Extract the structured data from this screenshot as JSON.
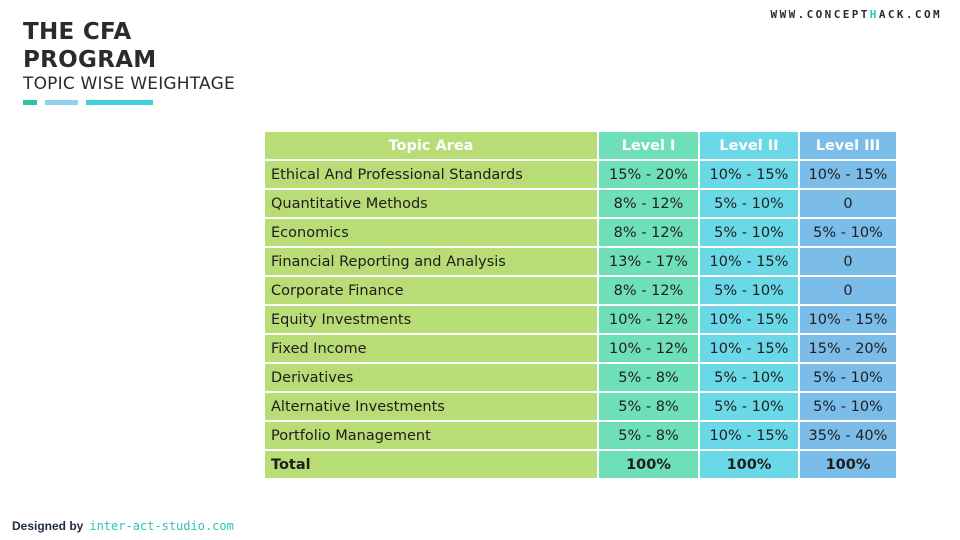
{
  "slide": {
    "title_line1": "THE CFA",
    "title_line2": "PROGRAM",
    "subtitle": "TOPIC WISE WEIGHTAGE",
    "website_prefix": "WWW.CONCEPT",
    "website_accent": "H",
    "website_suffix": "ACK.COM",
    "colors": {
      "bar1": "#2ec4a0",
      "bar2": "#8fd0f0",
      "bar3": "#3fd0dc",
      "accent": "#2ec4b0"
    }
  },
  "table": {
    "headers": [
      "Topic Area",
      "Level I",
      "Level II",
      "Level III"
    ],
    "rows": [
      [
        "Ethical And Professional Standards",
        "15% - 20%",
        "10% - 15%",
        "10% - 15%"
      ],
      [
        "Quantitative Methods",
        "8% - 12%",
        "5% - 10%",
        "0"
      ],
      [
        "Economics",
        "8% - 12%",
        "5% - 10%",
        "5% - 10%"
      ],
      [
        "Financial Reporting and Analysis",
        "13% - 17%",
        "10% - 15%",
        "0"
      ],
      [
        "Corporate Finance",
        "8% - 12%",
        "5% - 10%",
        "0"
      ],
      [
        "Equity Investments",
        "10% - 12%",
        "10% - 15%",
        "10% - 15%"
      ],
      [
        "Fixed Income",
        "10% - 12%",
        "10% - 15%",
        "15% - 20%"
      ],
      [
        "Derivatives",
        "5% - 8%",
        "5% - 10%",
        "5% - 10%"
      ],
      [
        "Alternative Investments",
        "5% - 8%",
        "5% - 10%",
        "5% - 10%"
      ],
      [
        "Portfolio Management",
        "5% - 8%",
        "10% - 15%",
        "35% - 40%"
      ]
    ],
    "total": [
      "Total",
      "100%",
      "100%",
      "100%"
    ],
    "colors": {
      "topic": "#b8dc76",
      "level1": "#6fdfb8",
      "level2": "#6ad8e6",
      "level3": "#7bbce8"
    }
  },
  "footer": {
    "label": "Designed by",
    "studio": "inter-act-studio.com"
  }
}
